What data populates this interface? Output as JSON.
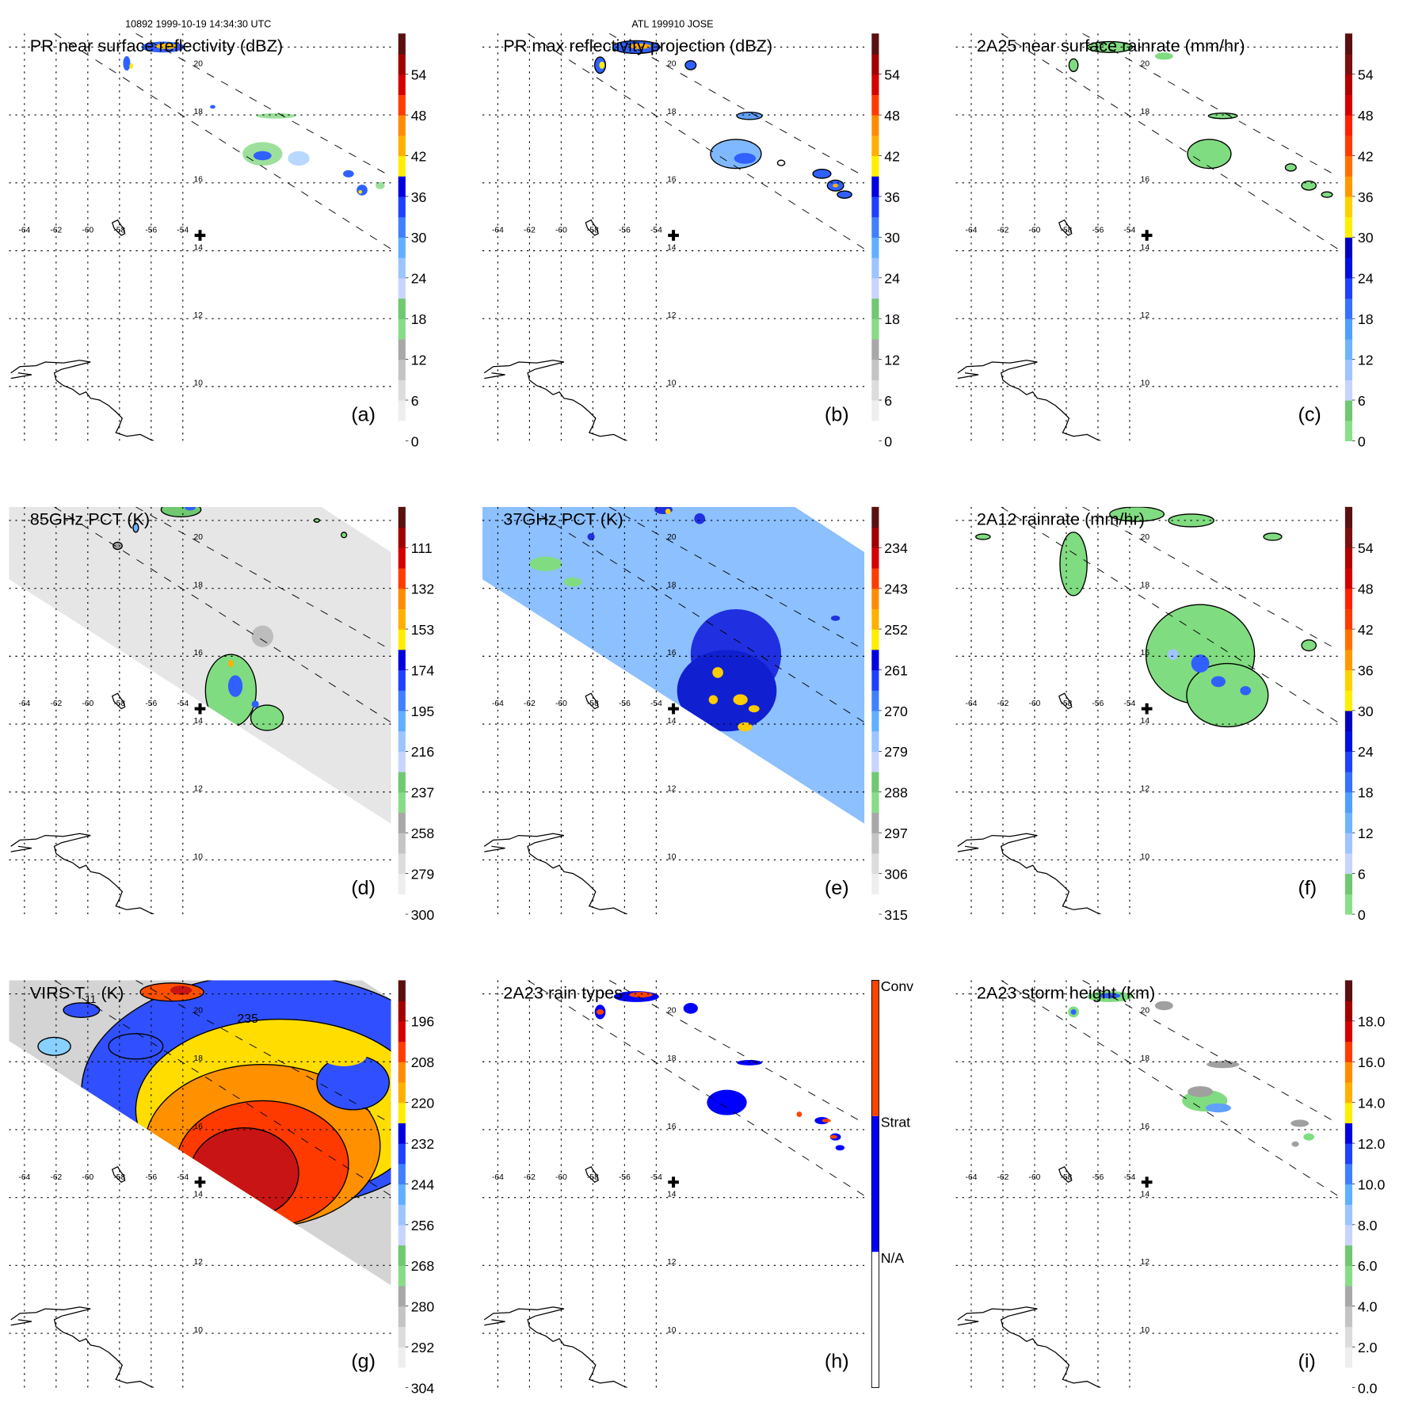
{
  "header": {
    "orbit_time": "10892 1999-10-19 14:34:30 UTC",
    "storm": "ATL 199910 JOSE"
  },
  "map": {
    "lon_labels": [
      "-64",
      "-62",
      "-60",
      "-58",
      "-56",
      "-54"
    ],
    "lat_labels": [
      "20",
      "18",
      "16",
      "14",
      "12",
      "10"
    ]
  },
  "palettes": {
    "standard": [
      "#ffffff",
      "#eeeeee",
      "#dcdcdc",
      "#c4c4c4",
      "#a8a8a8",
      "#88dc88",
      "#70c870",
      "#c8d4ff",
      "#9cc4ff",
      "#60b0ff",
      "#4080ff",
      "#2040ff",
      "#0000e0",
      "#ffee00",
      "#ffb000",
      "#ff8c00",
      "#ff3c00",
      "#d40000",
      "#a00000",
      "#5a1010"
    ],
    "rain": [
      "#88e088",
      "#70c870",
      "#c8d4ff",
      "#a0c4ff",
      "#70b4ff",
      "#50a0ff",
      "#3870ff",
      "#2040ff",
      "#0010e0",
      "#0000c0",
      "#ffee00",
      "#ffd000",
      "#ff9900",
      "#ff7000",
      "#ff3c00",
      "#ff2000",
      "#d40000",
      "#b00000",
      "#7a1010",
      "#5a1010"
    ],
    "rain_type": [
      "#ffffff",
      "#0000ff",
      "#ff4400"
    ]
  },
  "panels": [
    {
      "id": "a",
      "title": "PR near surface reflectivity (dBZ)",
      "letter": "(a)",
      "colorbar": {
        "palette": "standard",
        "min": 0,
        "max": 60,
        "top_is_min": false,
        "ticks": [
          {
            "v": 0,
            "label": "0"
          },
          {
            "v": 6,
            "label": "6"
          },
          {
            "v": 12,
            "label": "12"
          },
          {
            "v": 18,
            "label": "18"
          },
          {
            "v": 24,
            "label": "24"
          },
          {
            "v": 30,
            "label": "30"
          },
          {
            "v": 36,
            "label": "36"
          },
          {
            "v": 42,
            "label": "42"
          },
          {
            "v": 48,
            "label": "48"
          },
          {
            "v": 54,
            "label": "54"
          }
        ]
      }
    },
    {
      "id": "b",
      "title": "PR max reflectivity projection (dBZ)",
      "letter": "(b)",
      "colorbar": {
        "palette": "standard",
        "min": 0,
        "max": 60,
        "top_is_min": false,
        "ticks": [
          {
            "v": 0,
            "label": "0"
          },
          {
            "v": 6,
            "label": "6"
          },
          {
            "v": 12,
            "label": "12"
          },
          {
            "v": 18,
            "label": "18"
          },
          {
            "v": 24,
            "label": "24"
          },
          {
            "v": 30,
            "label": "30"
          },
          {
            "v": 36,
            "label": "36"
          },
          {
            "v": 42,
            "label": "42"
          },
          {
            "v": 48,
            "label": "48"
          },
          {
            "v": 54,
            "label": "54"
          }
        ]
      }
    },
    {
      "id": "c",
      "title": "2A25 near surface rainrate (mm/hr)",
      "letter": "(c)",
      "colorbar": {
        "palette": "rain",
        "min": 0,
        "max": 60,
        "top_is_min": false,
        "ticks": [
          {
            "v": 0,
            "label": "0"
          },
          {
            "v": 6,
            "label": "6"
          },
          {
            "v": 12,
            "label": "12"
          },
          {
            "v": 18,
            "label": "18"
          },
          {
            "v": 24,
            "label": "24"
          },
          {
            "v": 30,
            "label": "30"
          },
          {
            "v": 36,
            "label": "36"
          },
          {
            "v": 42,
            "label": "42"
          },
          {
            "v": 48,
            "label": "48"
          },
          {
            "v": 54,
            "label": "54"
          }
        ]
      }
    },
    {
      "id": "d",
      "title": "85GHz PCT (K)",
      "letter": "(d)",
      "colorbar": {
        "palette": "standard",
        "min": 90,
        "max": 300,
        "top_is_min": true,
        "ticks": [
          {
            "v": 111,
            "label": "111"
          },
          {
            "v": 132,
            "label": "132"
          },
          {
            "v": 153,
            "label": "153"
          },
          {
            "v": 174,
            "label": "174"
          },
          {
            "v": 195,
            "label": "195"
          },
          {
            "v": 216,
            "label": "216"
          },
          {
            "v": 237,
            "label": "237"
          },
          {
            "v": 258,
            "label": "258"
          },
          {
            "v": 279,
            "label": "279"
          },
          {
            "v": 300,
            "label": "300"
          }
        ]
      }
    },
    {
      "id": "e",
      "title": "37GHz PCT (K)",
      "letter": "(e)",
      "colorbar": {
        "palette": "standard",
        "min": 225,
        "max": 315,
        "top_is_min": true,
        "ticks": [
          {
            "v": 234,
            "label": "234"
          },
          {
            "v": 243,
            "label": "243"
          },
          {
            "v": 252,
            "label": "252"
          },
          {
            "v": 261,
            "label": "261"
          },
          {
            "v": 270,
            "label": "270"
          },
          {
            "v": 279,
            "label": "279"
          },
          {
            "v": 288,
            "label": "288"
          },
          {
            "v": 297,
            "label": "297"
          },
          {
            "v": 306,
            "label": "306"
          },
          {
            "v": 315,
            "label": "315"
          }
        ]
      }
    },
    {
      "id": "f",
      "title": "2A12 rainrate (mm/hr)",
      "letter": "(f)",
      "colorbar": {
        "palette": "rain",
        "min": 0,
        "max": 60,
        "top_is_min": false,
        "ticks": [
          {
            "v": 0,
            "label": "0"
          },
          {
            "v": 6,
            "label": "6"
          },
          {
            "v": 12,
            "label": "12"
          },
          {
            "v": 18,
            "label": "18"
          },
          {
            "v": 24,
            "label": "24"
          },
          {
            "v": 30,
            "label": "30"
          },
          {
            "v": 36,
            "label": "36"
          },
          {
            "v": 42,
            "label": "42"
          },
          {
            "v": 48,
            "label": "48"
          },
          {
            "v": 54,
            "label": "54"
          }
        ]
      }
    },
    {
      "id": "g",
      "title": "VIRS T",
      "title_sub": "11",
      "title_suffix": " (K)",
      "contour_label": "235",
      "letter": "(g)",
      "colorbar": {
        "palette": "standard",
        "min": 184,
        "max": 304,
        "top_is_min": true,
        "ticks": [
          {
            "v": 196,
            "label": "196"
          },
          {
            "v": 208,
            "label": "208"
          },
          {
            "v": 220,
            "label": "220"
          },
          {
            "v": 232,
            "label": "232"
          },
          {
            "v": 244,
            "label": "244"
          },
          {
            "v": 256,
            "label": "256"
          },
          {
            "v": 268,
            "label": "268"
          },
          {
            "v": 280,
            "label": "280"
          },
          {
            "v": 292,
            "label": "292"
          },
          {
            "v": 304,
            "label": "304"
          }
        ]
      }
    },
    {
      "id": "h",
      "title": "2A23 rain types",
      "letter": "(h)",
      "colorbar": {
        "palette": "rain_type",
        "categorical": true,
        "labels": [
          "N/A",
          "Strat",
          "Conv"
        ]
      }
    },
    {
      "id": "i",
      "title": "2A23 storm height (km)",
      "letter": "(i)",
      "colorbar": {
        "palette": "standard",
        "min": 0,
        "max": 20,
        "top_is_min": false,
        "ticks": [
          {
            "v": 0,
            "label": "0.0"
          },
          {
            "v": 2,
            "label": "2.0"
          },
          {
            "v": 4,
            "label": "4.0"
          },
          {
            "v": 6,
            "label": "6.0"
          },
          {
            "v": 8,
            "label": "8.0"
          },
          {
            "v": 10,
            "label": "10.0"
          },
          {
            "v": 12,
            "label": "12.0"
          },
          {
            "v": 14,
            "label": "14.0"
          },
          {
            "v": 16,
            "label": "16.0"
          },
          {
            "v": 18,
            "label": "18.0"
          }
        ]
      }
    }
  ]
}
